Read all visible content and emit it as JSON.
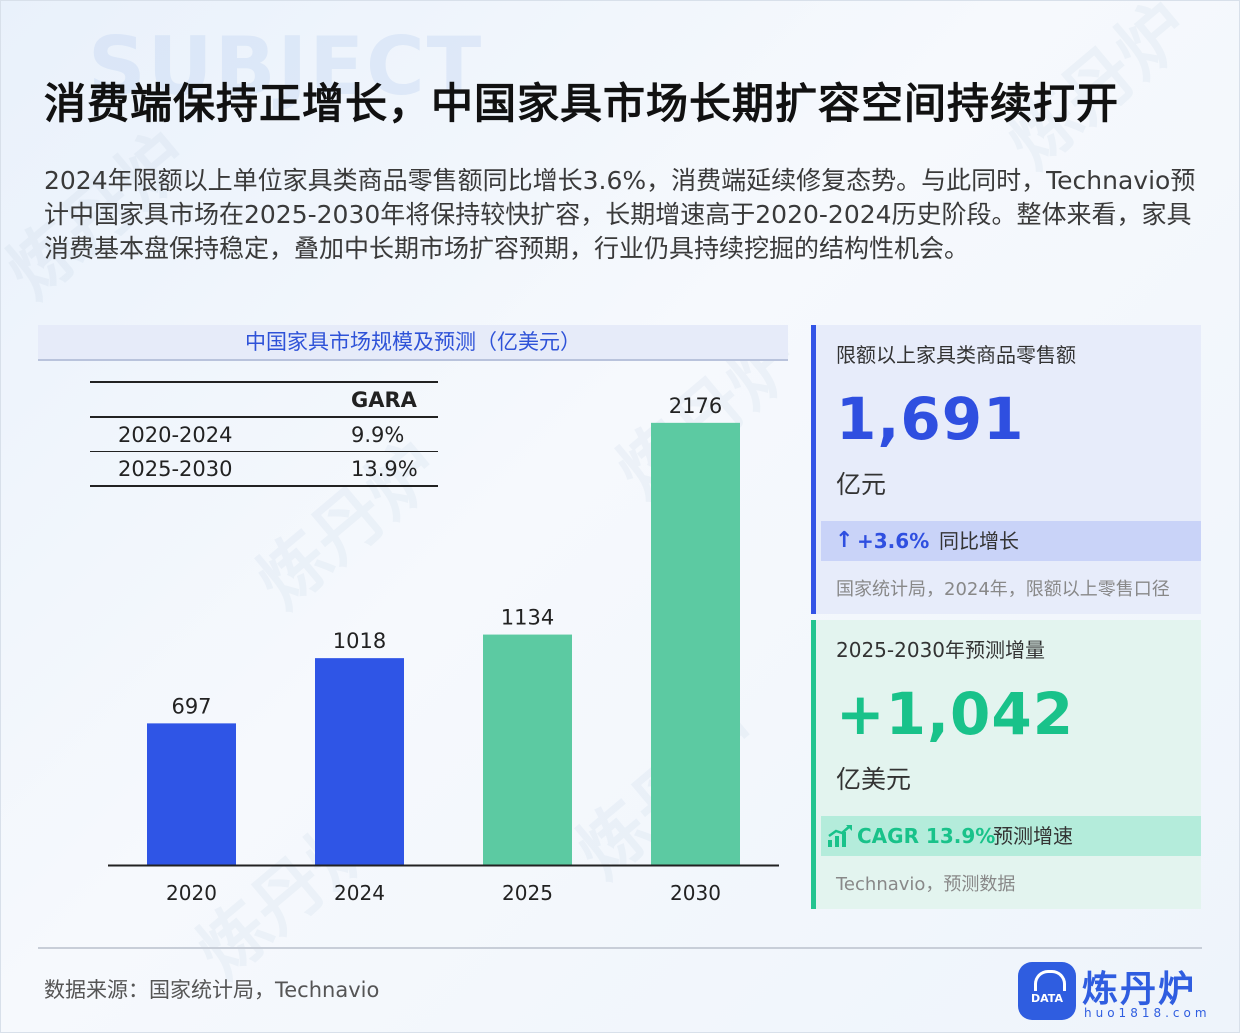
{
  "title": "消费端保持正增长，中国家具市场长期扩容空间持续打开",
  "background_word": "SUBJECT",
  "intro": "2024年限额以上单位家具类商品零售额同比增长3.6%，消费端延续修复态势。与此同时，Technavio预计中国家具市场在2025-2030年将保持较快扩容，长期增速高于2020-2024历史阶段。整体来看，家具消费基本盘保持稳定，叠加中长期市场扩容预期，行业仍具持续挖掘的结构性机会。",
  "chart_data": {
    "type": "bar",
    "title": "中国家具市场规模及预测（亿美元）",
    "categories": [
      "2020",
      "2024",
      "2025",
      "2030"
    ],
    "values": [
      697,
      1018,
      1134,
      2176
    ],
    "colors": [
      "#2f55e6",
      "#2f55e6",
      "#5ccaa2",
      "#5ccaa2"
    ],
    "xlabel": "",
    "ylabel": "",
    "ylim": [
      0,
      2500
    ],
    "grid": false,
    "legend": "none",
    "table": {
      "header": [
        "",
        "GARA"
      ],
      "rows": [
        [
          "2020-2024",
          "9.9%"
        ],
        [
          "2025-2030",
          "13.9%"
        ]
      ]
    }
  },
  "card1": {
    "label": "限额以上家具类商品零售额",
    "value": "1,691",
    "unit": "亿元",
    "change": "+3.6%",
    "change_text": "同比增长",
    "source": "国家统计局，2024年，限额以上零售口径",
    "accent": "#2f4fe0"
  },
  "card2": {
    "label": "2025-2030年预测增量",
    "value": "+1,042",
    "unit": "亿美元",
    "cagr": "CAGR 13.9%",
    "cagr_text": "预测增速",
    "source": "Technavio，预测数据",
    "accent": "#19c28a"
  },
  "footer": {
    "source": "数据来源：国家统计局，Technavio"
  },
  "logo": {
    "name": "炼丹炉",
    "url": "huo1818.com",
    "badge": "DATA",
    "watermark": "炼丹炉"
  }
}
